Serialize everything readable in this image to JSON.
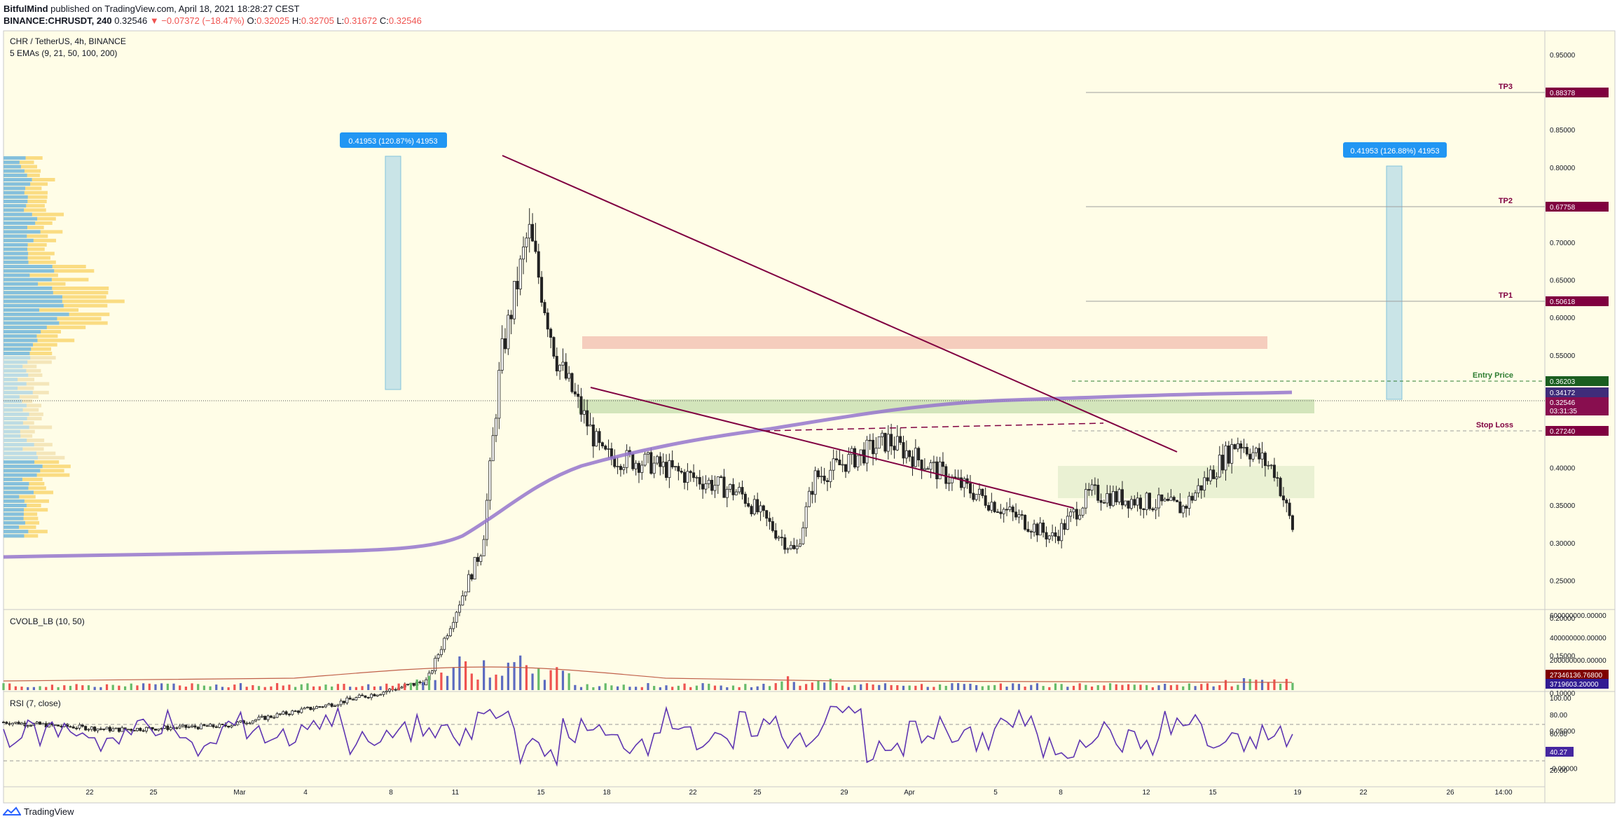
{
  "header": {
    "author": "BitfulMind",
    "published": "published on TradingView.com, April 18, 2021 18:28:27 CEST",
    "symbol_line": "BINANCE:CHRUSDT, 240",
    "last": "0.32546",
    "change": "▼ −0.07372 (−18.47%)",
    "o_label": "O:",
    "o": "0.32025",
    "h_label": "H:",
    "h": "0.32705",
    "l_label": "L:",
    "l": "0.31672",
    "c_label": "C:",
    "c": "0.32546"
  },
  "legend": {
    "title": "CHR / TetherUS, 4h, BINANCE",
    "indicator": "5 EMAs (9, 21, 50, 100, 200)"
  },
  "measure_left": "0.41953 (120.87%) 41953",
  "measure_right": "0.41953 (126.88%) 41953",
  "annotations": {
    "tp3": "TP3",
    "tp2": "TP2",
    "tp1": "TP1",
    "entry": "Entry Price",
    "stop": "Stop Loss"
  },
  "price_tags": {
    "tp3": "0.88378",
    "tp2": "0.67758",
    "tp1": "0.50618",
    "entry": "0.36203",
    "ema": "0.34172",
    "last": "0.32546",
    "countdown": "03:31:35",
    "stop": "0.27240"
  },
  "price_axis": [
    "0.95000",
    "0.90000",
    "0.85000",
    "0.80000",
    "0.75000",
    "0.70000",
    "0.65000",
    "0.60000",
    "0.55000",
    "0.50000",
    "0.45000",
    "0.40000",
    "0.35000",
    "0.30000",
    "0.25000",
    "0.20000",
    "0.15000",
    "0.10000",
    "0.05000",
    "-0.00000"
  ],
  "time_axis": [
    "22",
    "25",
    "Mar",
    "4",
    "8",
    "11",
    "15",
    "18",
    "22",
    "25",
    "29",
    "Apr",
    "5",
    "8",
    "12",
    "15",
    "19",
    "22",
    "26",
    "14:00"
  ],
  "volume_pane": {
    "title": "CVOLB_LB (10, 50)",
    "axis": [
      "600000000.00000",
      "400000000.00000",
      "200000000.00000"
    ],
    "tag1": "27346136.76800",
    "tag2": "3719603.20000"
  },
  "rsi_pane": {
    "title": "RSI (7, close)",
    "axis": [
      "100.00",
      "80.00",
      "60.00",
      "20.00"
    ],
    "tag": "40.27"
  },
  "footer": {
    "brand": "TradingView"
  },
  "colors": {
    "bg": "#fffde7",
    "trend": "#800040",
    "ema": "#9575cd",
    "resistance_zone": "#f4c8b8",
    "support_zone": "#c8dfb0",
    "tag": "#800040",
    "measure": "#b7dce8",
    "rsi_line": "#5e35b1"
  },
  "chart_data": {
    "type": "candlestick",
    "symbol": "CHR / TetherUS",
    "interval": "4h",
    "ylim": [
      -0.05,
      1.0
    ],
    "levels": {
      "TP3": 0.88378,
      "TP2": 0.67758,
      "TP1": 0.50618,
      "Entry Price": 0.36203,
      "Stop Loss": 0.2724
    },
    "zones": [
      {
        "name": "resistance",
        "from": 0.415,
        "to": 0.44
      },
      {
        "name": "support",
        "from": 0.3,
        "to": 0.325
      },
      {
        "name": "target_box",
        "from": 0.15,
        "to": 0.21
      }
    ],
    "price_path": [
      {
        "day": 0,
        "close": 0.065
      },
      {
        "day": 6,
        "close": 0.055
      },
      {
        "day": 12,
        "close": 0.06
      },
      {
        "day": 18,
        "close": 0.09
      },
      {
        "day": 23,
        "close": 0.12
      },
      {
        "day": 26,
        "close": 0.3
      },
      {
        "day": 27,
        "close": 0.55
      },
      {
        "day": 28.5,
        "close": 0.72
      },
      {
        "day": 30,
        "close": 0.55
      },
      {
        "day": 32.5,
        "close": 0.42
      },
      {
        "day": 35,
        "close": 0.41
      },
      {
        "day": 40,
        "close": 0.37
      },
      {
        "day": 43,
        "close": 0.29
      },
      {
        "day": 44,
        "close": 0.39
      },
      {
        "day": 48,
        "close": 0.44
      },
      {
        "day": 52,
        "close": 0.38
      },
      {
        "day": 57,
        "close": 0.31
      },
      {
        "day": 59,
        "close": 0.37
      },
      {
        "day": 64,
        "close": 0.35
      },
      {
        "day": 67,
        "close": 0.44
      },
      {
        "day": 69,
        "close": 0.4
      },
      {
        "day": 70,
        "close": 0.32
      }
    ],
    "volume_profile": true,
    "rsi": [
      55,
      60,
      45,
      70,
      35,
      65,
      50,
      75,
      40,
      62,
      48,
      80,
      30,
      58,
      44,
      72,
      38,
      66,
      52,
      85,
      28,
      60,
      45,
      70,
      35,
      55,
      42,
      68,
      38,
      50,
      40
    ]
  }
}
